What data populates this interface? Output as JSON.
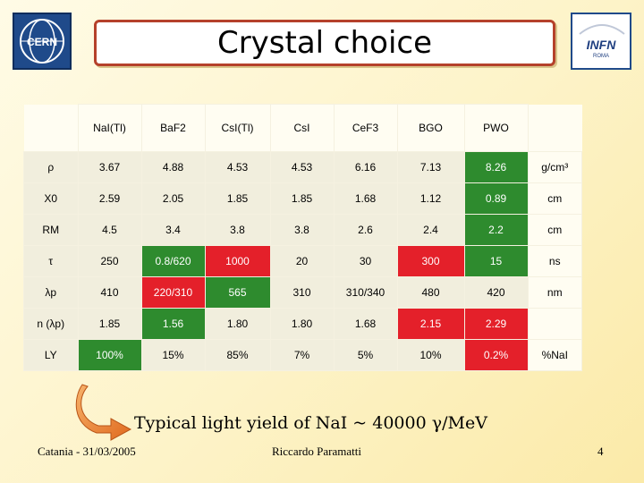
{
  "title": "Crystal choice",
  "logos": {
    "left": {
      "icon": "cern-logo-icon",
      "text": "CERN"
    },
    "right": {
      "icon": "infn-logo-icon",
      "text": "INFN",
      "sub": "ROMA"
    }
  },
  "table": {
    "columns": [
      "NaI(Tl)",
      "BaF2",
      "CsI(Tl)",
      "CsI",
      "CeF3",
      "BGO",
      "PWO"
    ],
    "rows": [
      {
        "label": "ρ",
        "cells": [
          "3.67",
          "4.88",
          "4.53",
          "4.53",
          "6.16",
          "7.13",
          "8.26"
        ],
        "unit": "g/cm³"
      },
      {
        "label": "X0",
        "cells": [
          "2.59",
          "2.05",
          "1.85",
          "1.85",
          "1.68",
          "1.12",
          "0.89"
        ],
        "unit": "cm"
      },
      {
        "label": "RM",
        "cells": [
          "4.5",
          "3.4",
          "3.8",
          "3.8",
          "2.6",
          "2.4",
          "2.2"
        ],
        "unit": "cm"
      },
      {
        "label": "τ",
        "cells": [
          "250",
          "0.8/620",
          "1000",
          "20",
          "30",
          "300",
          "15"
        ],
        "unit": "ns"
      },
      {
        "label": "λp",
        "cells": [
          "410",
          "220/310",
          "565",
          "310",
          "310/340",
          "480",
          "420"
        ],
        "unit": "nm"
      },
      {
        "label": "n (λp)",
        "cells": [
          "1.85",
          "1.56",
          "1.80",
          "1.80",
          "1.68",
          "2.15",
          "2.29"
        ],
        "unit": ""
      },
      {
        "label": "LY",
        "cells": [
          "100%",
          "15%",
          "85%",
          "7%",
          "5%",
          "10%",
          "0.2%"
        ],
        "unit": "%NaI"
      }
    ],
    "highlight_colors": {
      "good": "#2e8b2e",
      "bad": "#e4202a"
    }
  },
  "note": "Typical light yield of NaI ~ 40000 γ/MeV",
  "footer": {
    "left": "Catania - 31/03/2005",
    "center": "Riccardo Paramatti",
    "page": "4"
  }
}
